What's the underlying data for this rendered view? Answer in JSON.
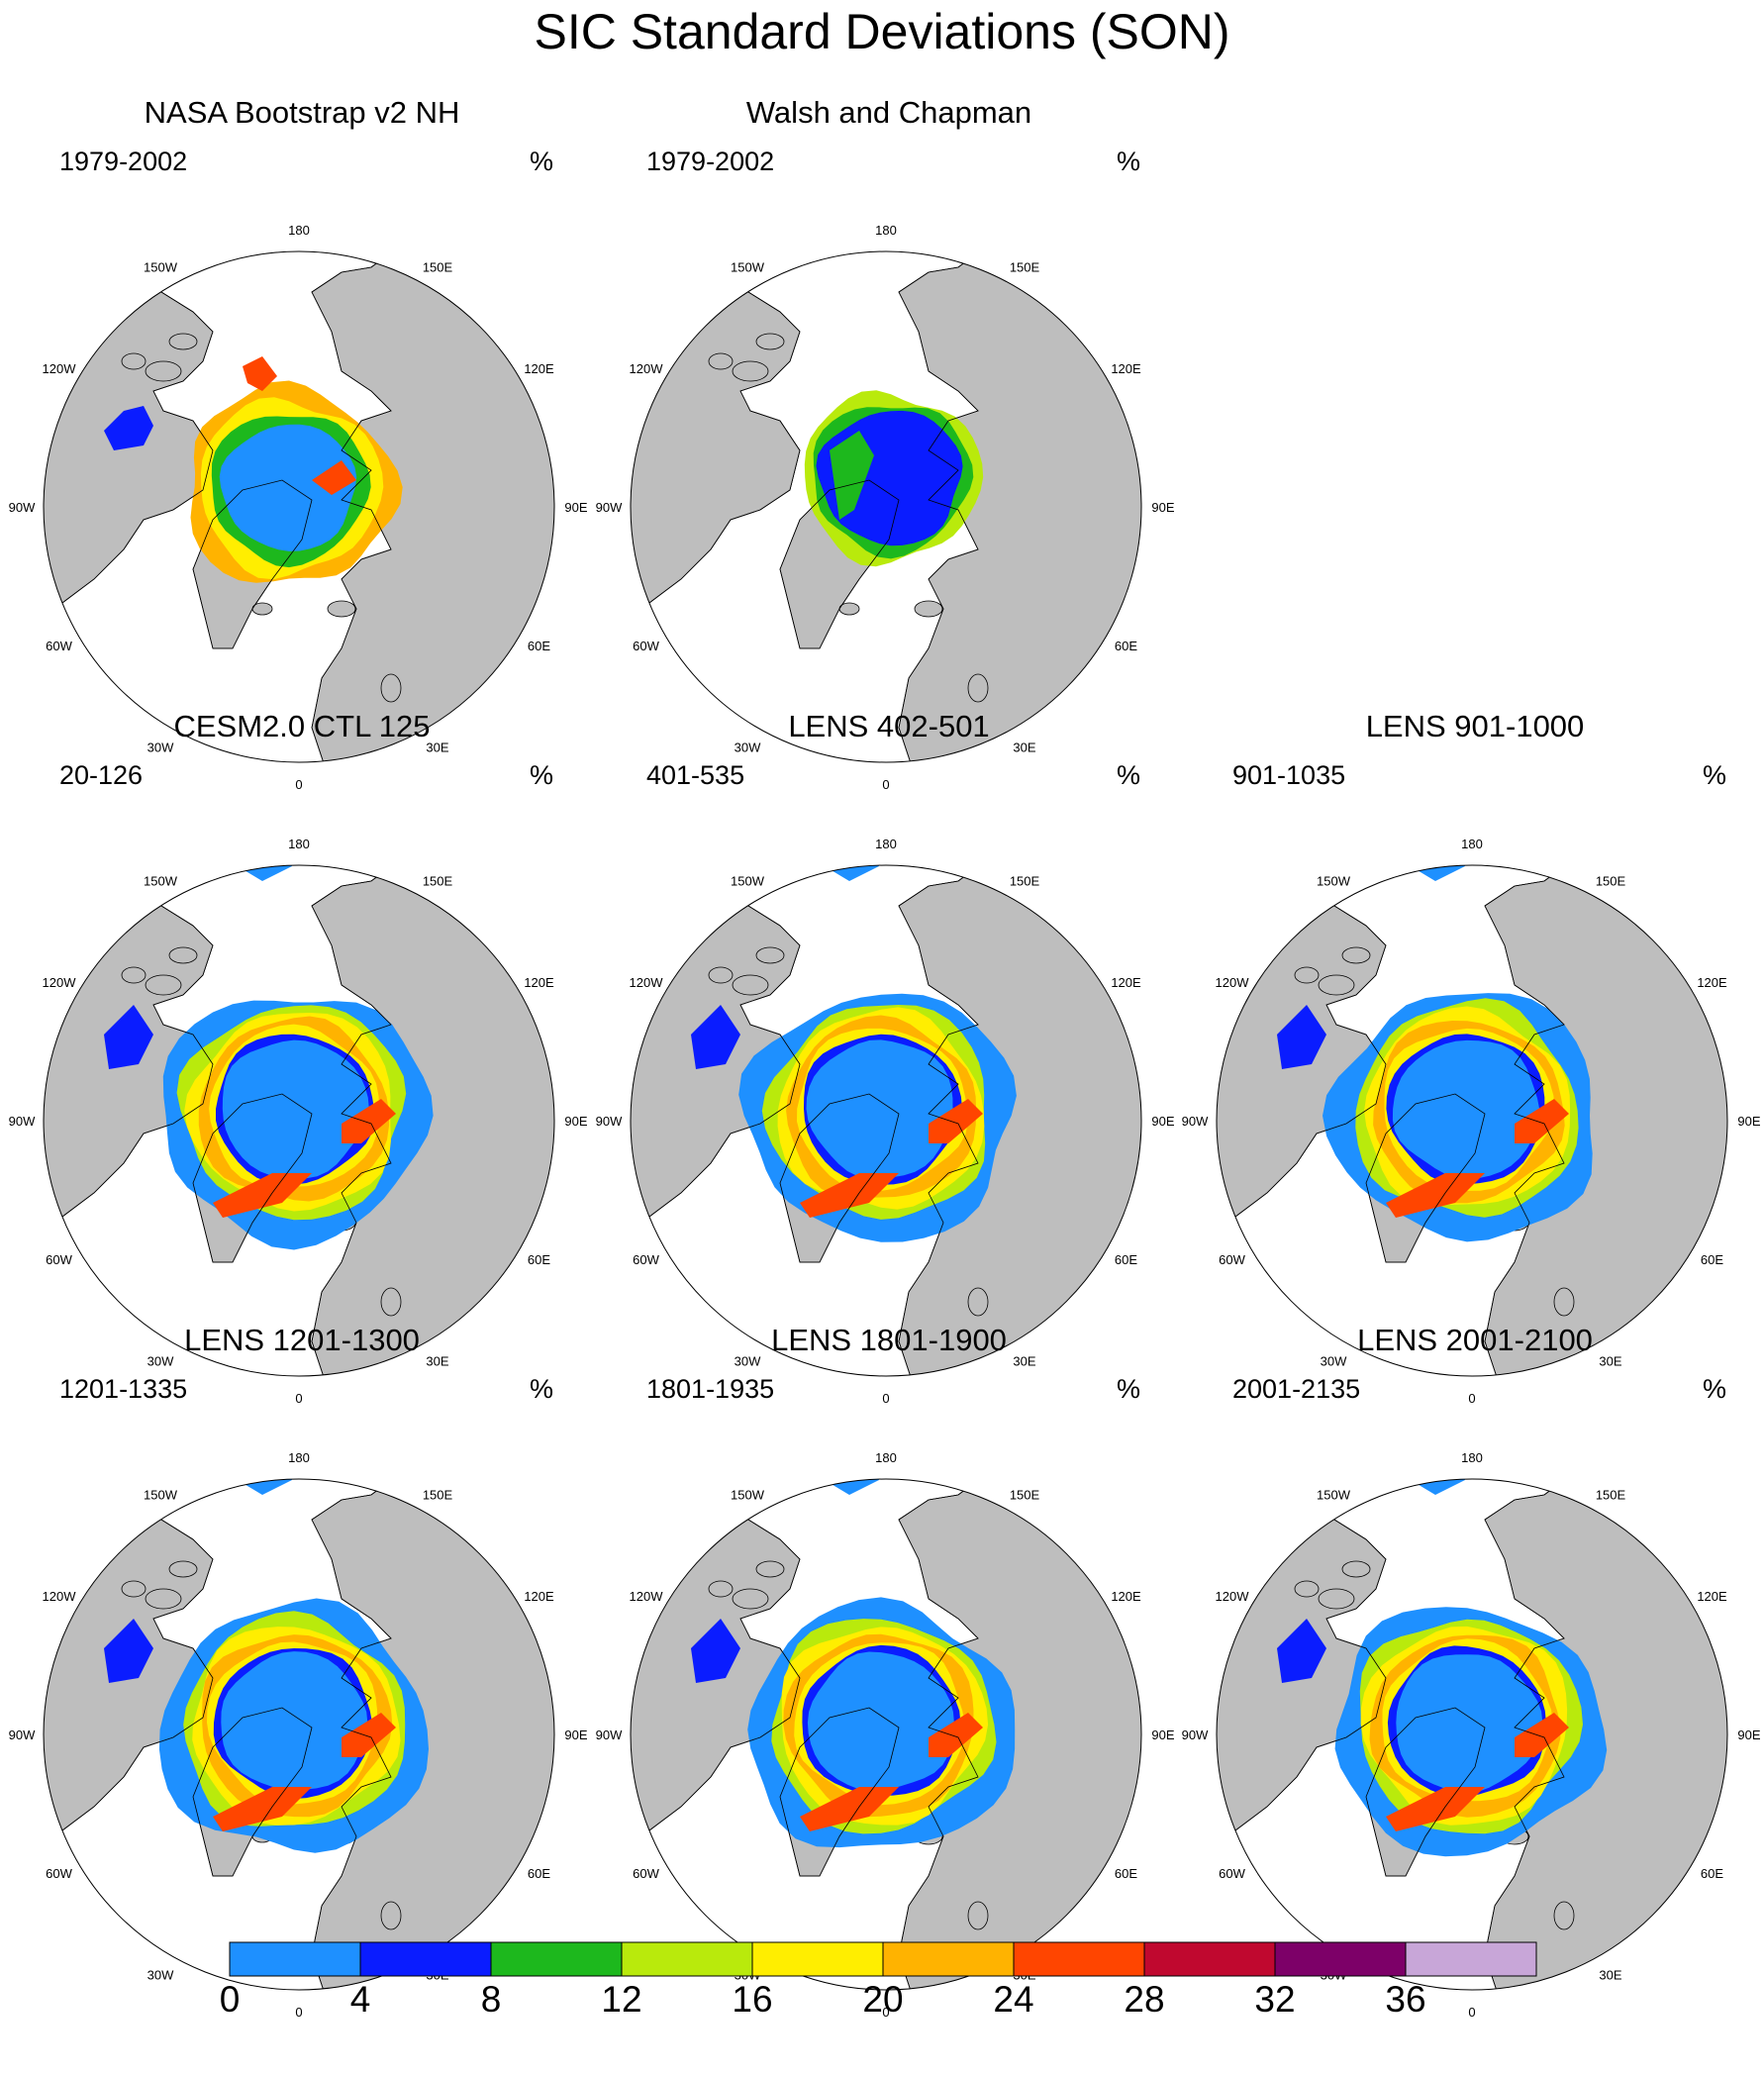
{
  "title": "SIC Standard Deviations (SON)",
  "unit": "%",
  "panels": [
    {
      "title": "NASA Bootstrap v2 NH",
      "years": "1979-2002",
      "style": "nasa"
    },
    {
      "title": "Walsh and Chapman",
      "years": "1979-2002",
      "style": "walsh"
    },
    {
      "title": "CESM2.0 CTL 125",
      "years": "20-126",
      "style": "model"
    },
    {
      "title": "LENS 402-501",
      "years": "401-535",
      "style": "model"
    },
    {
      "title": "LENS 901-1000",
      "years": "901-1035",
      "style": "model"
    },
    {
      "title": "LENS 1201-1300",
      "years": "1201-1335",
      "style": "model"
    },
    {
      "title": "LENS 1801-1900",
      "years": "1801-1935",
      "style": "model"
    },
    {
      "title": "LENS 2001-2100",
      "years": "2001-2135",
      "style": "model"
    }
  ],
  "longitude_labels": [
    "180",
    "150E",
    "120E",
    "90E",
    "60E",
    "30E",
    "0",
    "30W",
    "60W",
    "90W",
    "120W",
    "150W"
  ],
  "colorbar": {
    "labels": [
      "0",
      "4",
      "8",
      "12",
      "16",
      "20",
      "24",
      "28",
      "32",
      "36"
    ],
    "colors": [
      "#1e90ff",
      "#0a1cff",
      "#1db81d",
      "#b9ea0c",
      "#ffee00",
      "#ffb300",
      "#ff4500",
      "#c0082f",
      "#7d0068",
      "#c8a6d8"
    ]
  },
  "colors": {
    "land": "#bebebe",
    "ocean": "#ffffff",
    "coastline": "#000000"
  }
}
